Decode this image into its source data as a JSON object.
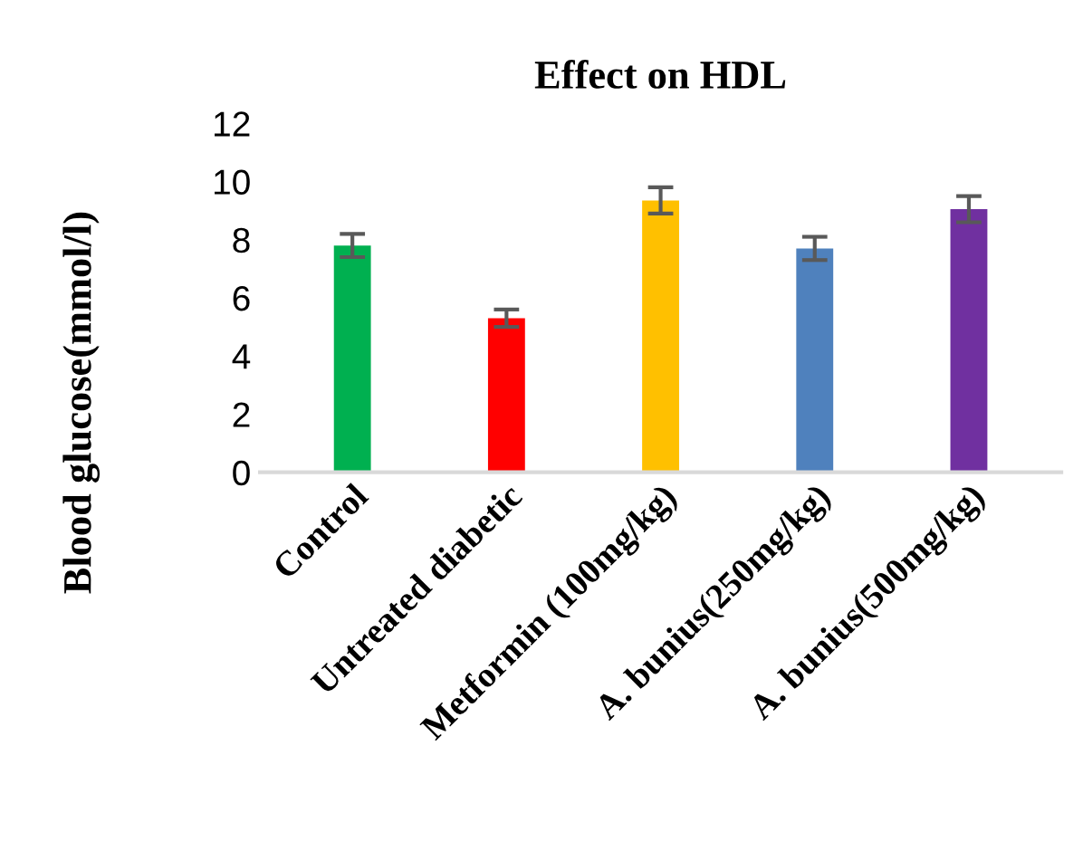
{
  "chart_data": {
    "type": "bar",
    "title": "Effect on HDL",
    "ylabel": "Blood glucose(mmol/l)",
    "categories": [
      "Control",
      "Untreated diabetic",
      "Metformin (100mg/kg)",
      "A. bunius(250mg/kg)",
      "A. bunius(500mg/kg)"
    ],
    "values": [
      7.8,
      5.3,
      9.35,
      7.7,
      9.05
    ],
    "errors": [
      0.4,
      0.3,
      0.45,
      0.4,
      0.45
    ],
    "colors": [
      "#00b050",
      "#ff0000",
      "#ffc000",
      "#4f81bd",
      "#7030a0"
    ],
    "ylim": [
      0,
      12
    ],
    "yticks": [
      0,
      2,
      4,
      6,
      8,
      10,
      12
    ],
    "grid": false,
    "legend": false
  }
}
